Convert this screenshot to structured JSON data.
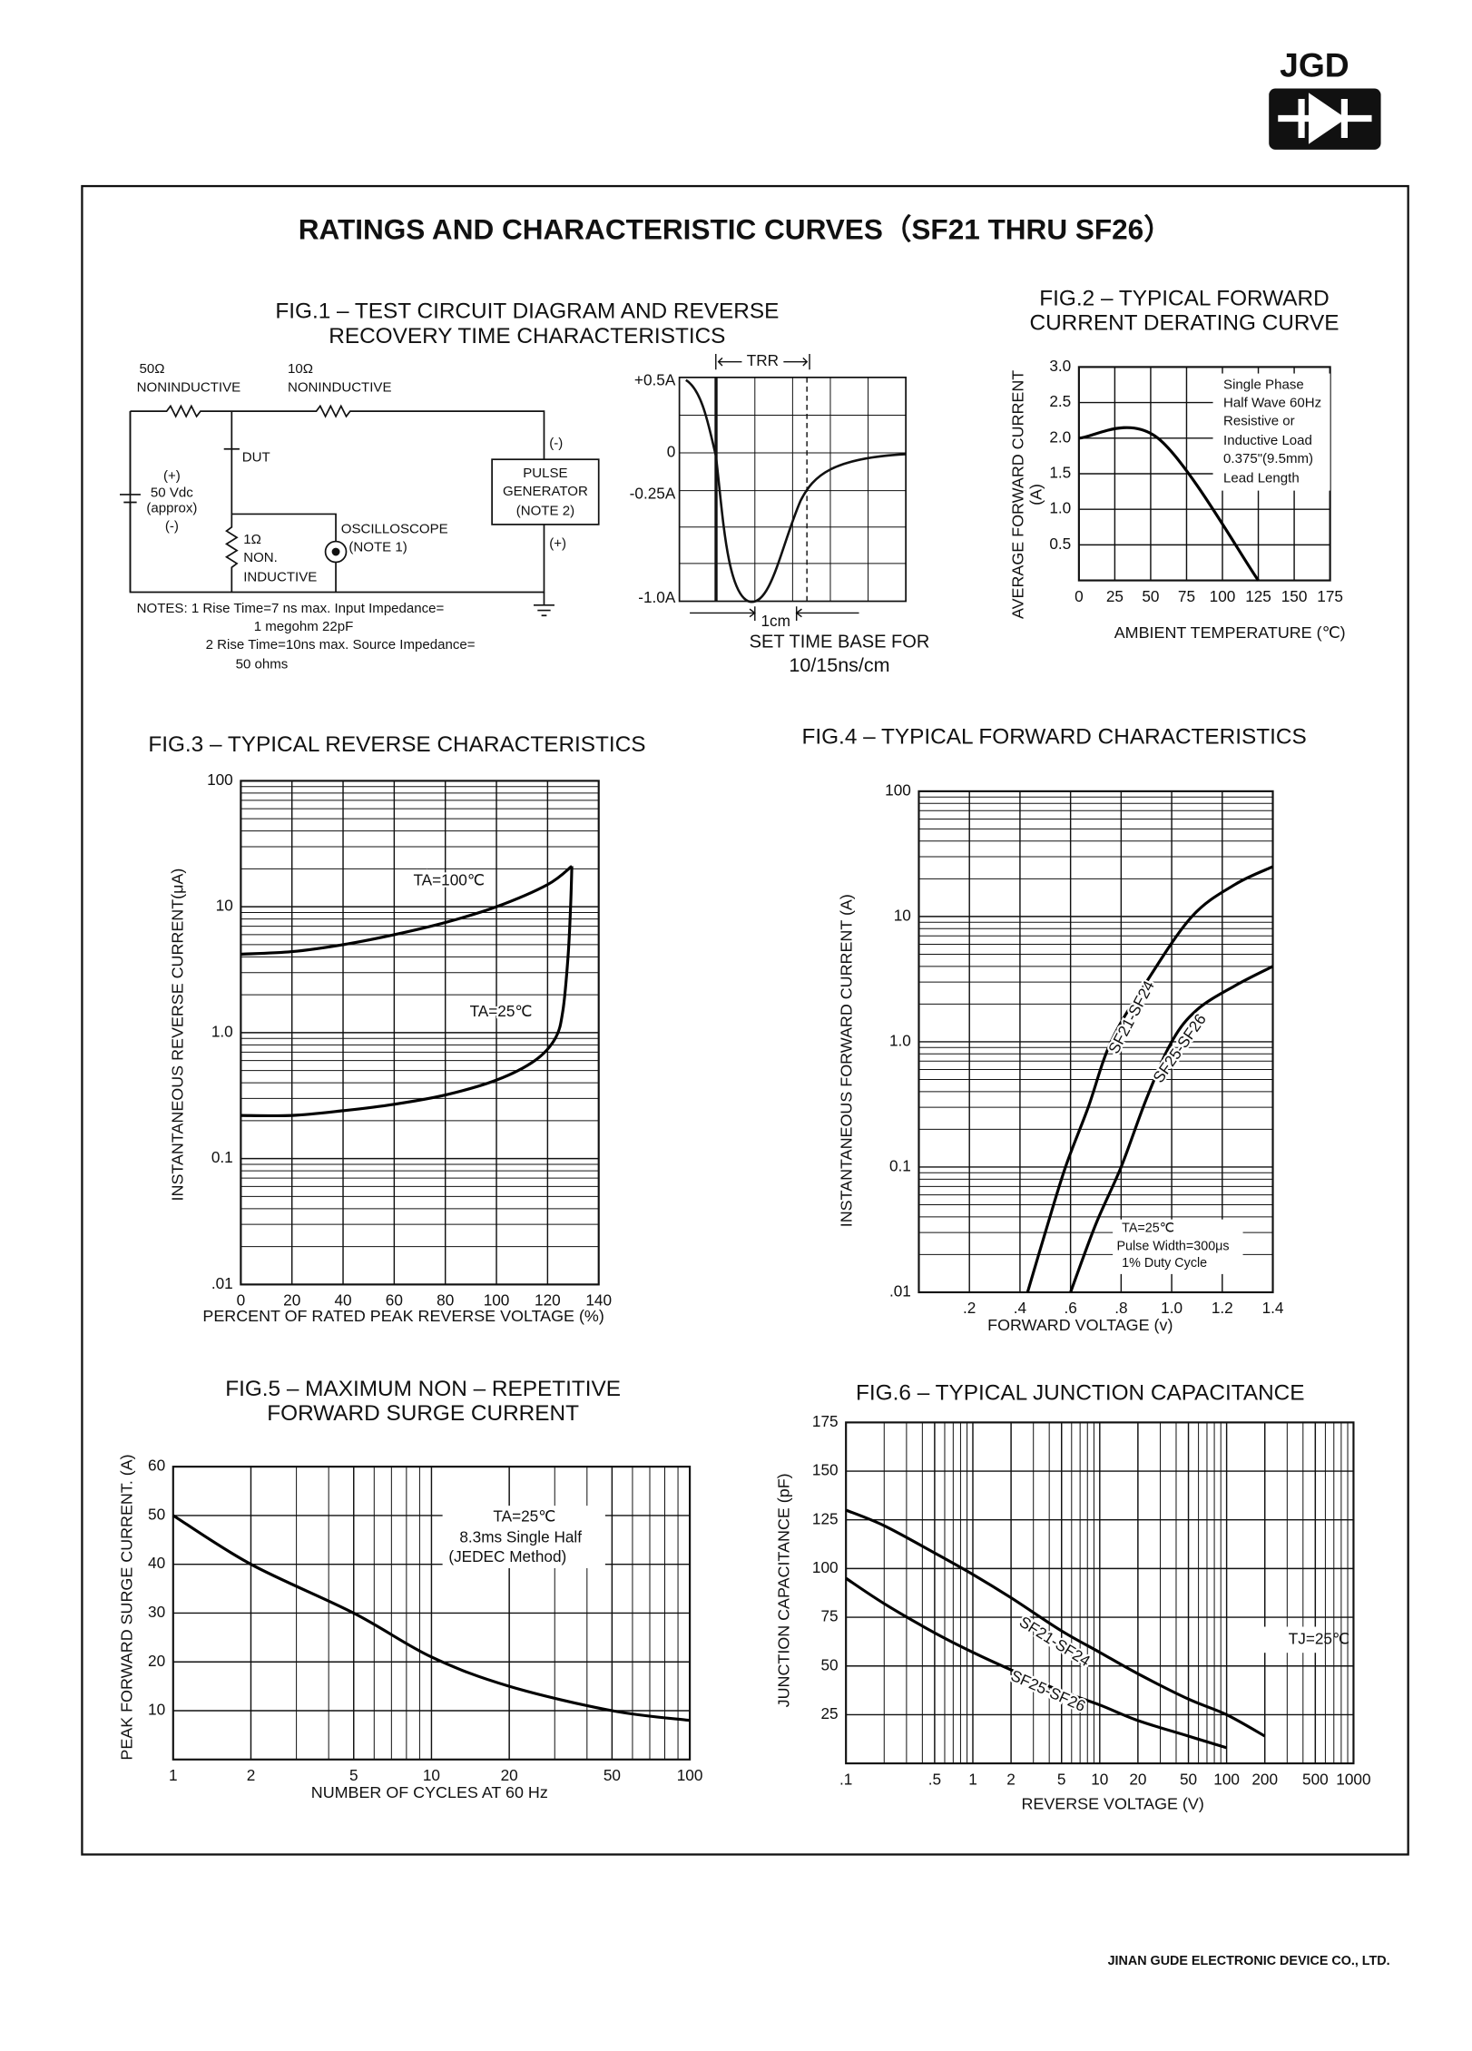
{
  "header": {
    "brand": "JGD",
    "title": "RATINGS AND CHARACTERISTIC CURVES（SF21 THRU SF26）"
  },
  "fig1": {
    "title": [
      "FIG.1 – TEST CIRCUIT DIAGRAM AND REVERSE",
      "RECOVERY TIME CHARACTERISTICS"
    ],
    "circuit_labels": [
      "50Ω",
      "NONINDUCTIVE",
      "10Ω",
      "NONINDUCTIVE",
      "DUT",
      "(+)",
      "50 Vdc",
      "(approx)",
      "(-)",
      "1Ω",
      "NON.",
      "INDUCTIVE",
      "OSCILLOSCOPE",
      "(NOTE 1)",
      "PULSE",
      "GENERATOR",
      "(NOTE 2)",
      "(-)",
      "(+)"
    ],
    "notes": [
      "NOTES: 1 Rise Time=7 ns max. Input Impedance=",
      "1 megohm 22pF",
      "2  Rise Time=10ns max. Source Impedance=",
      "50 ohms"
    ],
    "waveform_labels": [
      "+0.5A",
      "0",
      "-0.25A",
      "-1.0A",
      "TRR",
      "1cm"
    ],
    "time_base": [
      "SET TIME BASE FOR",
      "10/15ns/cm"
    ]
  },
  "chart_data": [
    {
      "type": "line",
      "title": [
        "FIG.2 – TYPICAL FORWARD",
        "CURRENT DERATING CURVE"
      ],
      "ylabel": [
        "AVERAGE FORWARD CURRENT",
        "(A)"
      ],
      "xlabel": "AMBIENT TEMPERATURE (℃)",
      "annotations": [
        "Single Phase",
        "Half Wave 60Hz",
        "Resistive or",
        "Inductive Load",
        "0.375\"(9.5mm)",
        "Lead Length"
      ],
      "xlim": [
        0,
        175
      ],
      "ylim": [
        0,
        3
      ],
      "xticks": [
        0,
        25,
        50,
        75,
        100,
        125,
        150,
        175
      ],
      "yticks": [
        {
          "value": 3,
          "label": "3.0"
        },
        2.5,
        {
          "value": 2,
          "label": "2.0"
        },
        1.5,
        {
          "value": 1,
          "label": "1.0"
        },
        0.5
      ],
      "grid": true,
      "series": [
        {
          "color": "#000000",
          "x": [
            0,
            55,
            125
          ],
          "values": [
            2.0,
            2.0,
            0
          ]
        }
      ]
    },
    {
      "type": "line",
      "title": "FIG.3 – TYPICAL REVERSE CHARACTERISTICS",
      "ylabel": "INSTANTANEOUS REVERSE CURRENT(μA)",
      "xlabel": "PERCENT OF RATED PEAK REVERSE VOLTAGE (%)",
      "xlim": [
        0,
        140
      ],
      "ylim": [
        0.01,
        100
      ],
      "yscale": "log",
      "xticks": [
        0,
        20,
        40,
        60,
        80,
        100,
        120,
        140
      ],
      "yticks": [
        100,
        10,
        {
          "value": 1,
          "label": "1.0"
        },
        {
          "value": 0.1,
          "label": "0.1"
        },
        {
          "value": 0.01,
          "label": ".01"
        }
      ],
      "grid": true,
      "series": [
        {
          "name": "TA=100℃",
          "color": "#000000",
          "x": [
            0,
            20,
            40,
            60,
            80,
            100,
            120,
            129.5
          ],
          "values": [
            4.2,
            4.4,
            5,
            6,
            7.5,
            10,
            15,
            21
          ]
        },
        {
          "name": "TA=25℃",
          "color": "#000000",
          "x": [
            0,
            20,
            40,
            60,
            80,
            100,
            115,
            123,
            126,
            128,
            129,
            129.5
          ],
          "values": [
            0.22,
            0.22,
            0.24,
            0.27,
            0.32,
            0.42,
            0.6,
            0.9,
            1.5,
            4,
            10,
            21
          ]
        }
      ]
    },
    {
      "type": "line",
      "title": "FIG.4 –  TYPICAL FORWARD CHARACTERISTICS",
      "ylabel": "INSTANTANEOUS FORWARD CURRENT (A)",
      "xlabel": "FORWARD VOLTAGE (v)",
      "annotations": [
        "TA=25℃",
        "Pulse Width=300μs",
        "1% Duty Cycle"
      ],
      "xlim": [
        0,
        1.4
      ],
      "ylim": [
        0.01,
        100
      ],
      "yscale": "log",
      "xticks": [
        {
          "value": 0.2,
          "label": ".2"
        },
        {
          "value": 0.4,
          "label": ".4"
        },
        {
          "value": 0.6,
          "label": ".6"
        },
        {
          "value": 0.8,
          "label": ".8"
        },
        {
          "value": 1,
          "label": "1.0"
        },
        1.2,
        1.4
      ],
      "yticks": [
        100,
        10,
        {
          "value": 1,
          "label": "1.0"
        },
        {
          "value": 0.1,
          "label": "0.1"
        },
        {
          "value": 0.01,
          "label": ".01"
        }
      ],
      "grid": true,
      "series": [
        {
          "name": "SF21-SF24",
          "color": "#000000",
          "x": [
            0.43,
            0.5,
            0.58,
            0.67,
            0.76,
            0.9,
            1.08,
            1.25,
            1.4
          ],
          "values": [
            0.01,
            0.03,
            0.1,
            0.3,
            1,
            3,
            10,
            18,
            25
          ]
        },
        {
          "name": "SF25-SF26",
          "color": "#000000",
          "x": [
            0.6,
            0.7,
            0.8,
            0.9,
            1.0,
            1.1,
            1.25,
            1.4
          ],
          "values": [
            0.01,
            0.035,
            0.1,
            0.35,
            1,
            1.8,
            2.8,
            4
          ]
        }
      ]
    },
    {
      "type": "line",
      "title": [
        "FIG.5 – MAXIMUM NON – REPETITIVE",
        "FORWARD SURGE CURRENT"
      ],
      "ylabel": "PEAK FORWARD SURGE CURRENT. (A)",
      "xlabel": "NUMBER OF CYCLES AT 60 Hz",
      "annotations": [
        "TA=25℃",
        "8.3ms Single Half",
        "(JEDEC Method)"
      ],
      "xlim": [
        1,
        100
      ],
      "ylim": [
        0,
        60
      ],
      "xscale": "log",
      "xticks": [
        1,
        2,
        5,
        10,
        20,
        50,
        100
      ],
      "yticks": [
        10,
        20,
        30,
        40,
        50,
        60
      ],
      "grid": true,
      "series": [
        {
          "color": "#000000",
          "x": [
            1,
            2,
            5,
            10,
            20,
            50,
            100
          ],
          "values": [
            50,
            40,
            30,
            21,
            15,
            10,
            8
          ]
        }
      ]
    },
    {
      "type": "line",
      "title": "FIG.6 – TYPICAL JUNCTION CAPACITANCE",
      "ylabel": "JUNCTION CAPACITANCE (pF)",
      "xlabel": "REVERSE VOLTAGE (V)",
      "annotations": [
        "TJ=25℃"
      ],
      "xlim": [
        0.1,
        1000
      ],
      "ylim": [
        0,
        175
      ],
      "xscale": "log",
      "xticks": [
        {
          "value": 0.1,
          "label": ".1"
        },
        {
          "value": 0.5,
          "label": ".5"
        },
        1,
        2,
        5,
        10,
        20,
        50,
        100,
        200,
        500,
        1000
      ],
      "yticks": [
        25,
        50,
        75,
        100,
        125,
        150,
        175
      ],
      "grid": true,
      "series": [
        {
          "name": "SF21-SF24",
          "color": "#000000",
          "x": [
            0.1,
            0.2,
            0.5,
            1,
            2,
            5,
            10,
            20,
            50,
            100,
            200
          ],
          "values": [
            130,
            122,
            108,
            97,
            85,
            68,
            57,
            46,
            33,
            25,
            14
          ]
        },
        {
          "name": "SF25-SF26",
          "color": "#000000",
          "x": [
            0.1,
            0.2,
            0.5,
            1,
            2,
            5,
            10,
            20,
            50,
            100
          ],
          "values": [
            95,
            82,
            67,
            57,
            48,
            37,
            30,
            22,
            14,
            8
          ]
        }
      ]
    }
  ],
  "footer": "JINAN GUDE ELECTRONIC DEVICE CO., LTD."
}
